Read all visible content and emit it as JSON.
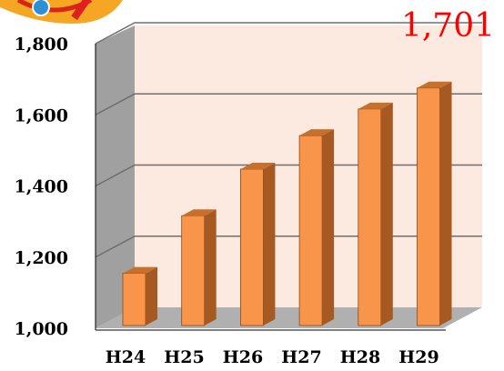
{
  "chart_data": {
    "type": "bar",
    "categories": [
      "H24",
      "H25",
      "H26",
      "H27",
      "H28",
      "H29"
    ],
    "values": [
      1180,
      1342,
      1473,
      1567,
      1642,
      1701
    ],
    "yticks": [
      "1,000",
      "1,200",
      "1,400",
      "1,600",
      "1,800"
    ],
    "ylim": [
      1000,
      1800
    ],
    "grid": true,
    "annotation": "1,701",
    "colors": {
      "bar_front": "#f9954a",
      "bar_side": "#a65a22",
      "bar_top": "#c7702b",
      "back_wall": "#fce9df",
      "side_wall": "#a0a0a0",
      "floor": "#b0b0b0",
      "gridline": "#6e6e6e",
      "annotation": "#ff0000"
    }
  }
}
